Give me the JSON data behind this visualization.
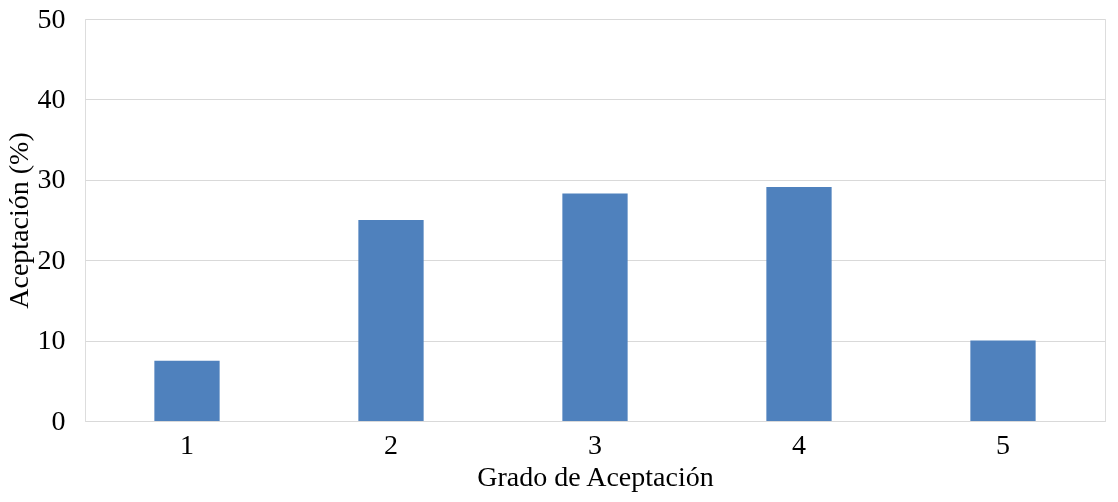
{
  "chart_data": {
    "type": "bar",
    "xlabel": "Grado de Aceptación",
    "ylabel": "Aceptación (%)",
    "categories": [
      "1",
      "2",
      "3",
      "4",
      "5"
    ],
    "values": [
      7.5,
      25,
      28.3,
      29.1,
      10
    ],
    "color": "#4f81bd",
    "ylim": [
      0,
      50
    ],
    "yticks": [
      0,
      10,
      20,
      30,
      40,
      50
    ],
    "grid": "y"
  }
}
